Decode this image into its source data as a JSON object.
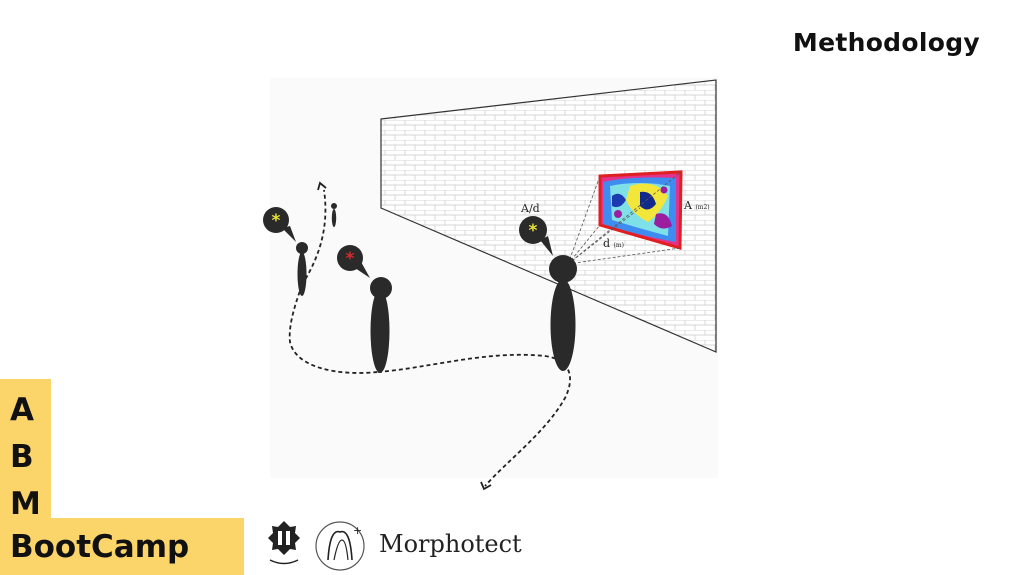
{
  "header": {
    "title": "Methodology"
  },
  "diagram": {
    "ratio_label": "A/d",
    "area_label": "A",
    "area_unit": "(m2)",
    "distance_label": "d",
    "distance_unit": "(m)",
    "speech_colors": {
      "yellow": "#e6e235",
      "red": "#d92a2a"
    }
  },
  "branding": {
    "abm_letters": [
      "A",
      "B",
      "M"
    ],
    "bootcamp": "BootCamp",
    "partner": "Morphotect",
    "accent_color": "#fcd56a"
  }
}
